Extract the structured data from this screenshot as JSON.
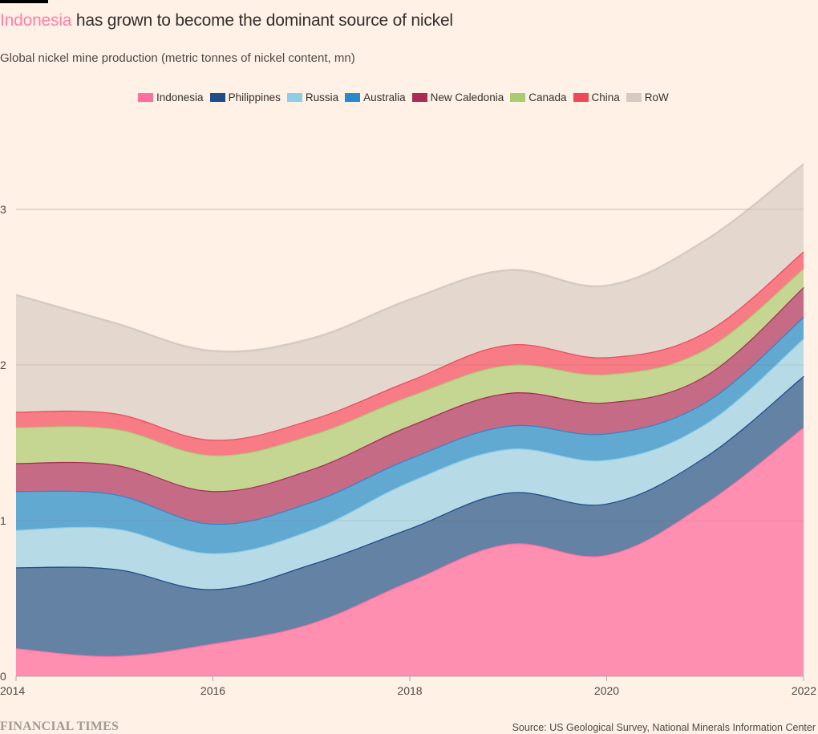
{
  "header": {
    "title_highlight": "Indonesia",
    "title_rest": " has grown to become the dominant source of nickel",
    "subtitle": "Global nickel mine production (metric tonnes of nickel content, mn)"
  },
  "footer": {
    "brand": "FINANCIAL TIMES",
    "source": "Source: US Geological Survey, National Minerals Information Center"
  },
  "chart_data": {
    "type": "area",
    "stacked": true,
    "title": "Indonesia has grown to become the dominant source of nickel",
    "subtitle": "Global nickel mine production (metric tonnes of nickel content, mn)",
    "xlabel": "",
    "ylabel": "",
    "x": [
      2014,
      2015,
      2016,
      2017,
      2018,
      2019,
      2020,
      2021,
      2022
    ],
    "xticks": [
      "2014",
      "2016",
      "2018",
      "2020",
      "2022"
    ],
    "xtick_values": [
      2014,
      2016,
      2018,
      2020,
      2022
    ],
    "yticks": [
      "0",
      "1",
      "2",
      "3"
    ],
    "ytick_values": [
      0,
      1,
      2,
      3
    ],
    "ylim": [
      0,
      3.3
    ],
    "xlim": [
      2014,
      2022
    ],
    "grid": "horizontal",
    "legend_position": "top",
    "series": [
      {
        "name": "Indonesia",
        "color": "#ff8fb1",
        "line": "#ff6fa0",
        "values": [
          0.18,
          0.13,
          0.21,
          0.34,
          0.61,
          0.85,
          0.78,
          1.11,
          1.6
        ]
      },
      {
        "name": "Philippines",
        "color": "#6482a3",
        "line": "#1f4c8a",
        "values": [
          0.52,
          0.56,
          0.35,
          0.38,
          0.34,
          0.33,
          0.33,
          0.3,
          0.33
        ]
      },
      {
        "name": "Russia",
        "color": "#b6dbe6",
        "line": "#8ecde6",
        "values": [
          0.24,
          0.26,
          0.23,
          0.22,
          0.3,
          0.28,
          0.28,
          0.21,
          0.24
        ]
      },
      {
        "name": "Australia",
        "color": "#62a9d2",
        "line": "#2a88cc",
        "values": [
          0.25,
          0.22,
          0.19,
          0.18,
          0.15,
          0.15,
          0.17,
          0.14,
          0.14
        ]
      },
      {
        "name": "New Caledonia",
        "color": "#c66b85",
        "line": "#a82c56",
        "values": [
          0.18,
          0.19,
          0.21,
          0.21,
          0.21,
          0.21,
          0.2,
          0.17,
          0.19
        ]
      },
      {
        "name": "Canada",
        "color": "#c5d693",
        "line": "#a9cc72",
        "values": [
          0.23,
          0.23,
          0.23,
          0.22,
          0.19,
          0.18,
          0.18,
          0.17,
          0.12
        ]
      },
      {
        "name": "China",
        "color": "#f77c85",
        "line": "#ef4a5a",
        "values": [
          0.1,
          0.1,
          0.1,
          0.1,
          0.1,
          0.13,
          0.11,
          0.11,
          0.11
        ]
      },
      {
        "name": "RoW",
        "color": "#e3d7ce",
        "line": "#d6cbc3",
        "values": [
          0.75,
          0.58,
          0.57,
          0.52,
          0.52,
          0.48,
          0.46,
          0.59,
          0.56
        ]
      }
    ]
  }
}
